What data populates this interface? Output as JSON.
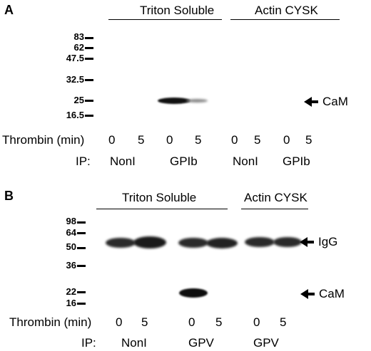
{
  "panelA": {
    "letter": "A",
    "header_left": "Triton Soluble",
    "header_right": "Actin CYSK",
    "markers": [
      "83",
      "62",
      "47.5",
      "32.5",
      "25",
      "16.5"
    ],
    "band_label": "CaM",
    "thrombin_label": "Thrombin (min)",
    "thrombin_values": [
      "0",
      "5",
      "0",
      "5",
      "0",
      "5",
      "0",
      "5"
    ],
    "ip_label": "IP:",
    "ip_values": [
      "NonI",
      "GPIb",
      "NonI",
      "GPIb"
    ]
  },
  "panelB": {
    "letter": "B",
    "header_left": "Triton Soluble",
    "header_right": "Actin CYSK",
    "markers": [
      "98",
      "64",
      "50",
      "36",
      "22",
      "16"
    ],
    "band_labels": [
      "IgG",
      "CaM"
    ],
    "thrombin_label": "Thrombin (min)",
    "thrombin_values": [
      "0",
      "5",
      "0",
      "5",
      "0",
      "5"
    ],
    "ip_label": "IP:",
    "ip_values": [
      "NonI",
      "GPV",
      "GPV"
    ]
  }
}
